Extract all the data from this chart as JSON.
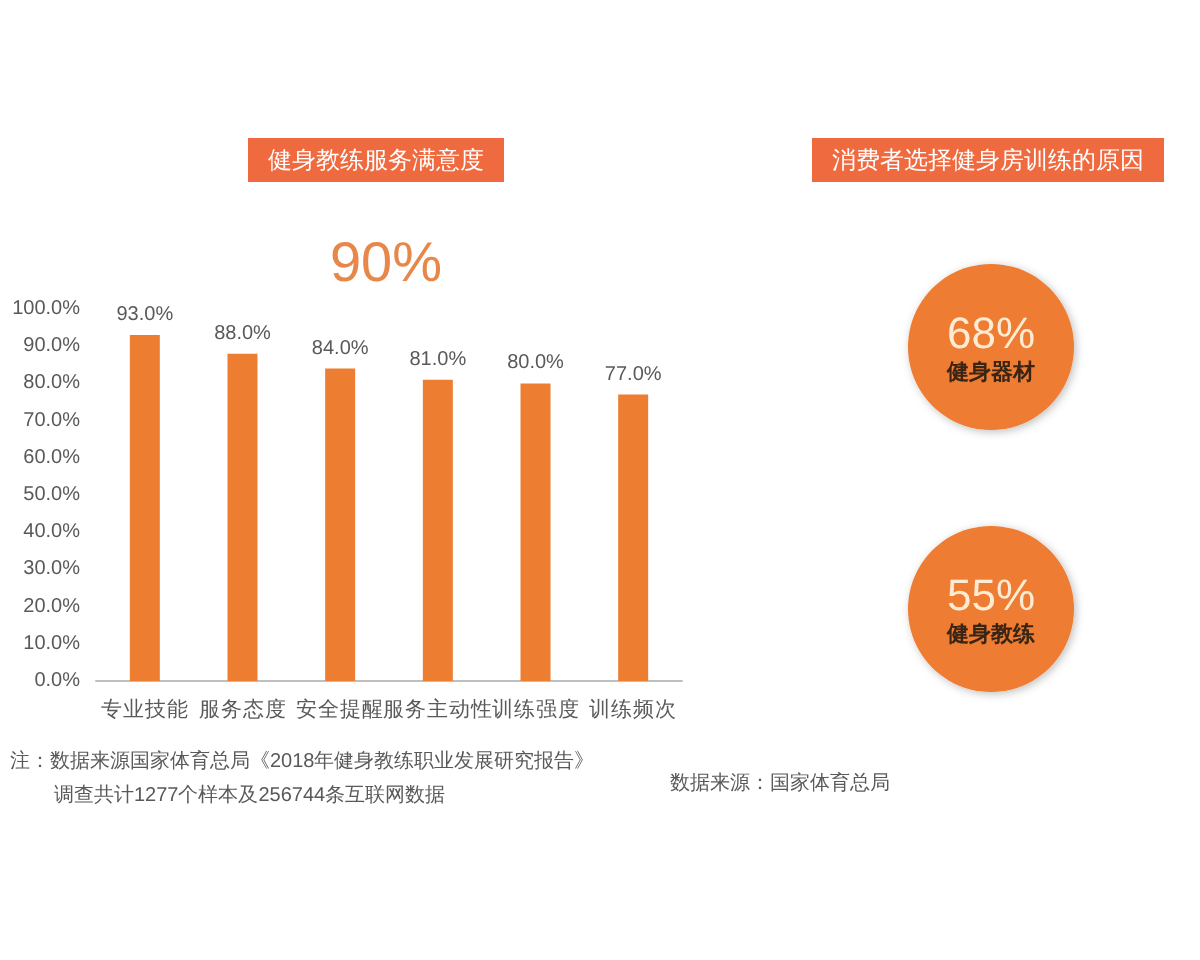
{
  "chart_data": [
    {
      "type": "bar",
      "title": "健身教练服务满意度",
      "subtitle": "90%",
      "categories": [
        "专业技能",
        "服务态度",
        "安全提醒",
        "服务主动性",
        "训练强度",
        "训练频次"
      ],
      "values": [
        93,
        88,
        84,
        81,
        80,
        77
      ],
      "value_labels": [
        "93.0%",
        "88.0%",
        "84.0%",
        "81.0%",
        "80.0%",
        "77.0%"
      ],
      "color": "#ed7d31",
      "ylim": [
        0,
        100
      ],
      "yticks": [
        {
          "value": 0,
          "label": "0.0%"
        },
        {
          "value": 10,
          "label": "10.0%"
        },
        {
          "value": 20,
          "label": "20.0%"
        },
        {
          "value": 30,
          "label": "30.0%"
        },
        {
          "value": 40,
          "label": "40.0%"
        },
        {
          "value": 50,
          "label": "50.0%"
        },
        {
          "value": 60,
          "label": "60.0%"
        },
        {
          "value": 70,
          "label": "70.0%"
        },
        {
          "value": 80,
          "label": "80.0%"
        },
        {
          "value": 90,
          "label": "90.0%"
        },
        {
          "value": 100,
          "label": "100.0%"
        }
      ],
      "annotations": [
        "注：数据来源国家体育总局《2018年健身教练职业发展研究报告》",
        "调查共计1277个样本及256744条互联网数据"
      ]
    },
    {
      "type": "other",
      "title": "消费者选择健身房训练的原因",
      "categories": [
        "健身器材",
        "健身教练"
      ],
      "values": [
        68,
        55
      ],
      "value_labels": [
        "68%",
        "55%"
      ],
      "color": "#ee7b30",
      "annotations": [
        "数据来源：国家体育总局"
      ]
    }
  ]
}
